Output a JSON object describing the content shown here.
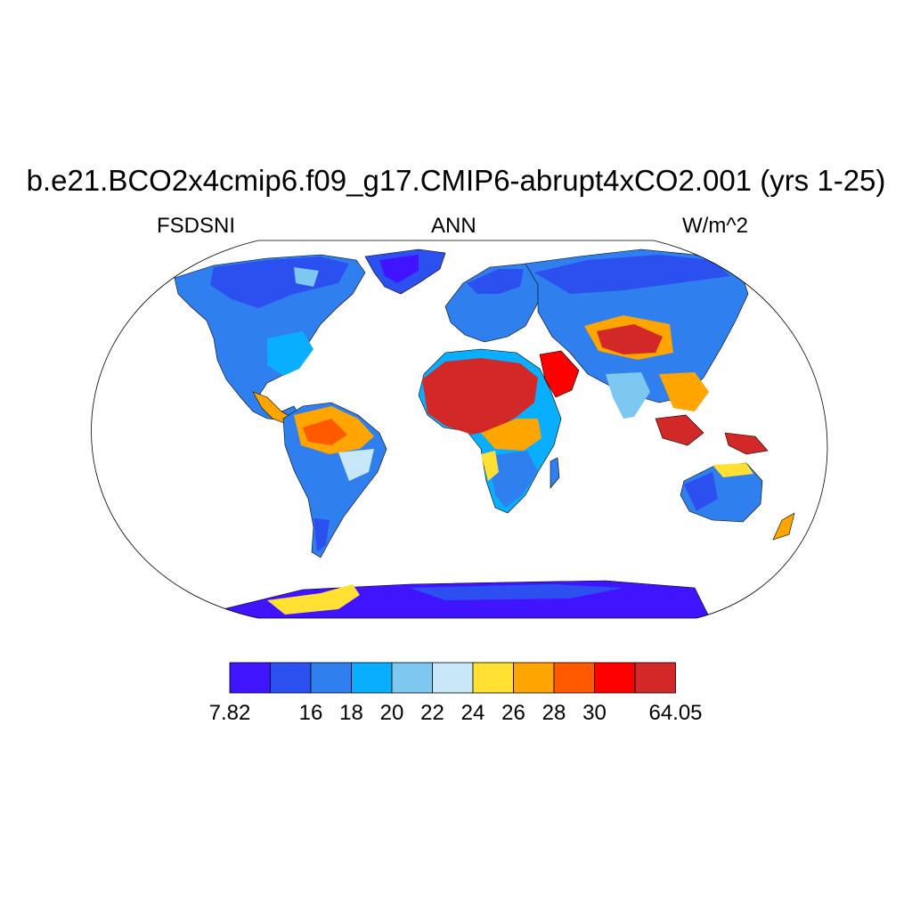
{
  "header": {
    "title": "b.e21.BCO2x4cmip6.f09_g17.CMIP6-abrupt4xCO2.001 (yrs 1-25)",
    "left": "FSDSNI",
    "center": "ANN",
    "right": "W/m^2"
  },
  "map": {
    "projection": "Robinson",
    "variable": "FSDSNI",
    "season": "ANN",
    "units": "W/m^2"
  },
  "colorbar": {
    "colors": [
      "#4014ff",
      "#2c4ff0",
      "#2f80ee",
      "#0aaeff",
      "#7cc8f0",
      "#c8e8fa",
      "#ffe033",
      "#ffa500",
      "#ff5a00",
      "#ff0000",
      "#d22828"
    ],
    "labels": [
      "7.82",
      "",
      "16",
      "18",
      "20",
      "22",
      "24",
      "26",
      "28",
      "30",
      "",
      "64.05"
    ]
  }
}
